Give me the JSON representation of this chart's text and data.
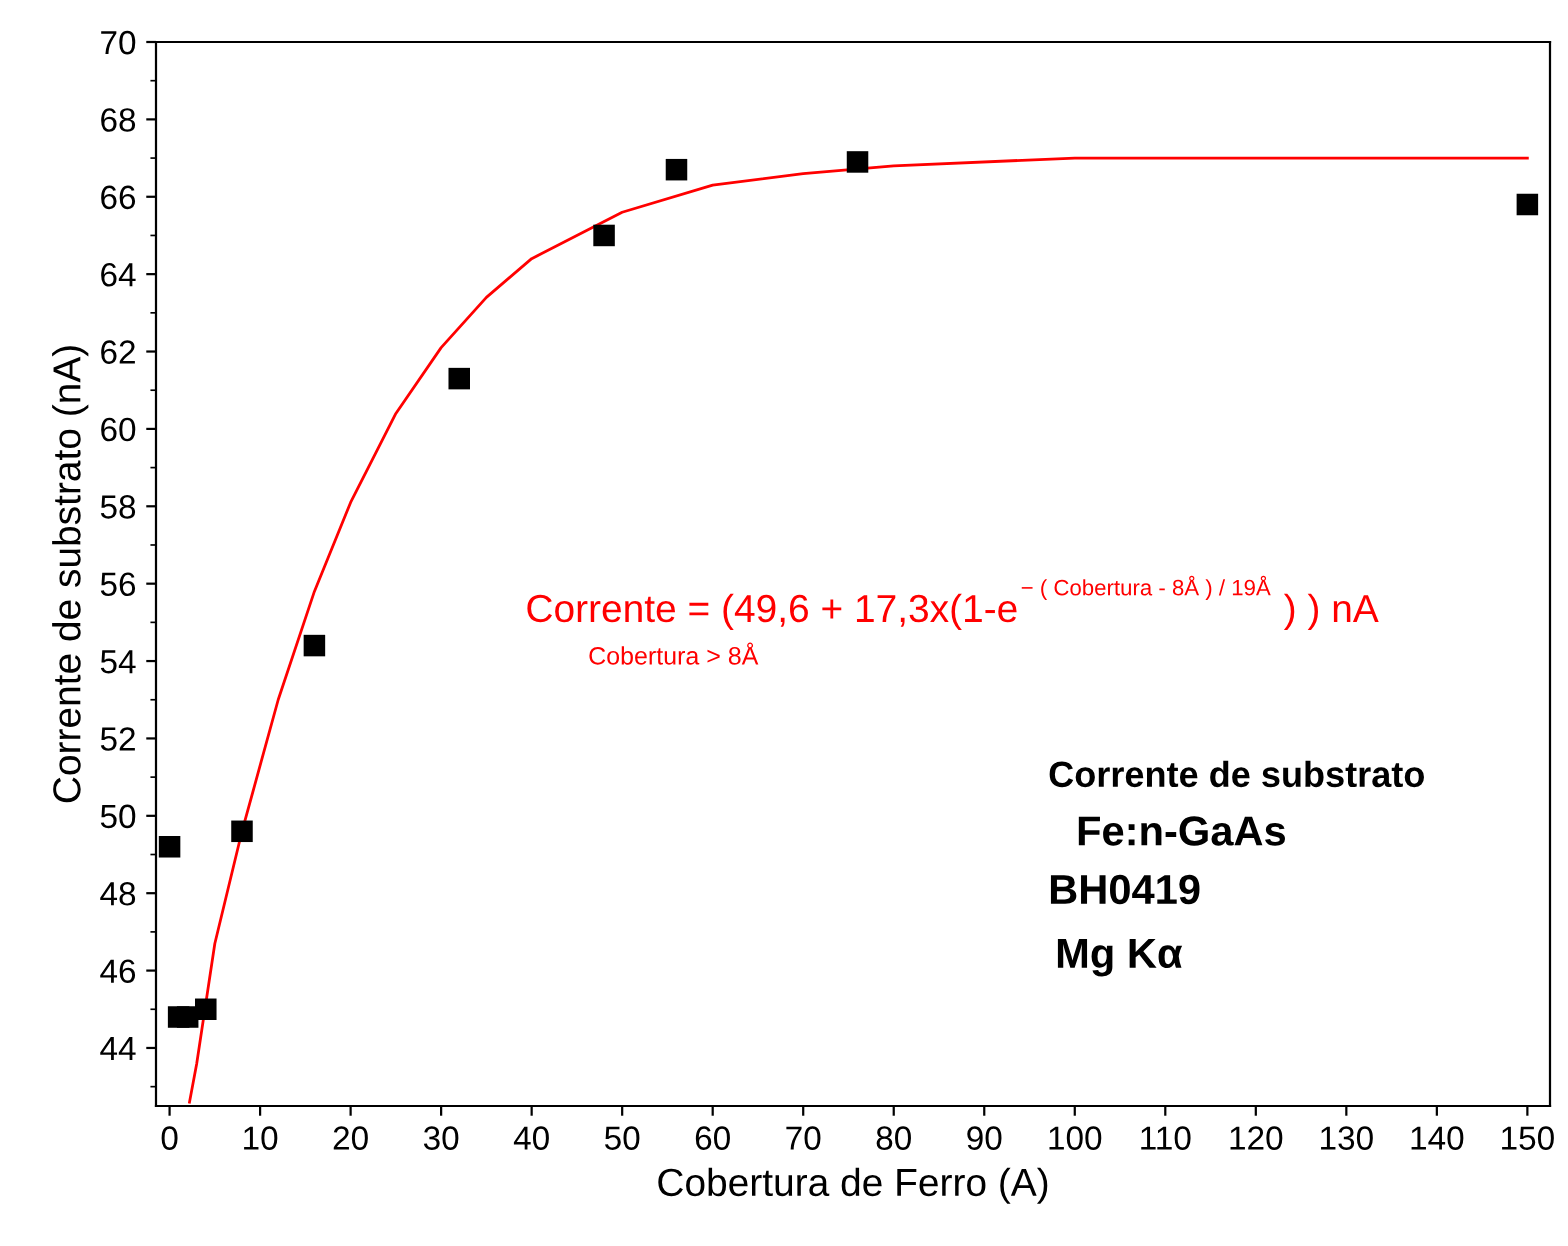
{
  "chart_data": {
    "type": "scatter",
    "xlabel": "Cobertura de Ferro (A)",
    "ylabel": "Corrente de substrato (nA)",
    "xlim": [
      -1.5,
      152.5
    ],
    "ylim": [
      42.5,
      70
    ],
    "xticks": [
      0,
      10,
      20,
      30,
      40,
      50,
      60,
      70,
      80,
      90,
      100,
      110,
      120,
      130,
      140,
      150
    ],
    "yticks": [
      44,
      46,
      48,
      50,
      52,
      54,
      56,
      58,
      60,
      62,
      64,
      66,
      68,
      70
    ],
    "grid": false,
    "legend": false,
    "series": [
      {
        "marker": "square",
        "color": "#000000",
        "x": [
          0,
          1,
          2,
          4,
          8,
          16,
          32,
          48,
          56,
          76,
          150
        ],
        "values": [
          49.2,
          44.8,
          44.8,
          45.0,
          49.6,
          54.4,
          61.3,
          65.0,
          66.7,
          66.9,
          65.8
        ]
      },
      {
        "type": "line",
        "marker": "none",
        "line_style": "solid",
        "color": "#ff0000",
        "x": [
          2.2,
          3,
          5,
          8,
          12,
          16,
          20,
          25,
          30,
          35,
          40,
          50,
          60,
          70,
          80,
          100,
          120,
          150
        ],
        "values": [
          42.6,
          43.6,
          46.7,
          49.6,
          53.0,
          55.8,
          58.1,
          60.4,
          62.1,
          63.4,
          64.4,
          65.6,
          66.3,
          66.6,
          66.8,
          67.0,
          67.0,
          67.0
        ]
      }
    ],
    "annotations": [
      "Corrente = (49,6 + 17,3x(1-e$^{− ( Cobertura - 8Å ) / 19Å}$ ) ) nA",
      "Cobertura > 8Å",
      "Corrente de substrato",
      "Fe:n-GaAs",
      "BH0419",
      "Mg Kα"
    ]
  }
}
